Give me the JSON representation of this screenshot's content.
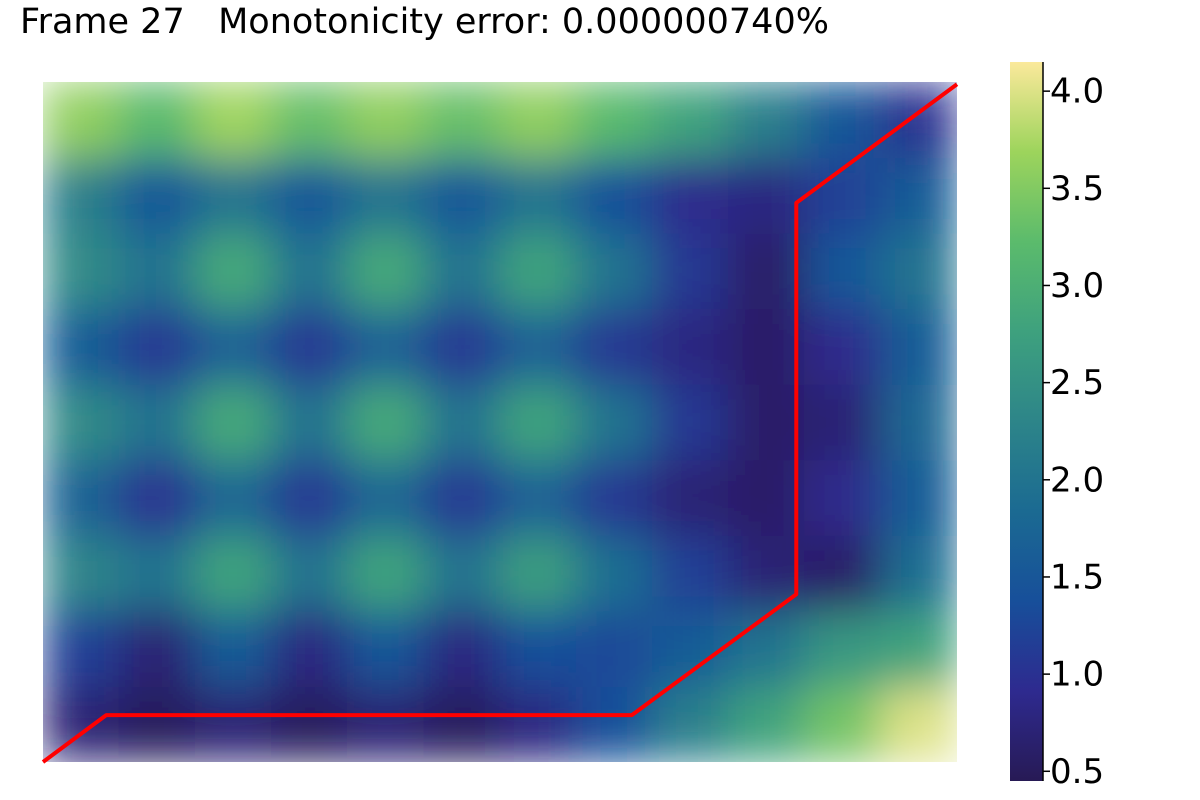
{
  "chart_data": {
    "type": "heatmap",
    "title": "Frame 27   Monotonicity error: 0.000000740%",
    "xlim": [
      0.5,
      12.5
    ],
    "ylim": [
      0.5,
      9.5
    ],
    "z": [
      [
        0.7,
        0.5,
        0.7,
        0.5,
        0.7,
        0.5,
        0.8,
        1.4,
        2.2,
        2.8,
        3.4,
        4.0
      ],
      [
        1.2,
        0.7,
        1.6,
        0.8,
        1.5,
        0.8,
        1.4,
        1.3,
        1.6,
        2.0,
        2.6,
        2.8
      ],
      [
        2.3,
        2.0,
        2.8,
        2.0,
        2.8,
        2.0,
        2.7,
        1.9,
        1.2,
        0.7,
        0.6,
        1.9
      ],
      [
        1.7,
        1.0,
        1.8,
        1.1,
        1.8,
        1.1,
        1.7,
        1.1,
        0.7,
        0.6,
        0.9,
        1.6
      ],
      [
        2.4,
        2.0,
        2.9,
        2.0,
        2.9,
        2.0,
        2.8,
        2.0,
        1.1,
        0.6,
        0.7,
        1.8
      ],
      [
        1.6,
        1.1,
        1.7,
        1.1,
        1.7,
        1.1,
        1.7,
        1.1,
        0.8,
        0.6,
        0.9,
        1.6
      ],
      [
        2.4,
        2.0,
        2.9,
        2.0,
        2.9,
        2.0,
        2.8,
        2.0,
        1.1,
        0.6,
        1.5,
        2.0
      ],
      [
        2.2,
        1.5,
        2.0,
        1.5,
        2.0,
        1.5,
        2.0,
        1.4,
        0.9,
        0.8,
        1.2,
        1.6
      ],
      [
        3.6,
        3.2,
        3.7,
        3.3,
        3.6,
        3.3,
        3.6,
        3.2,
        2.8,
        2.2,
        1.5,
        1.0
      ]
    ],
    "colormap": [
      "#271a55",
      "#2e2a8f",
      "#174f9a",
      "#1b6a92",
      "#2d8589",
      "#3ea17e",
      "#5bbb6c",
      "#9dd45c",
      "#fbe99b"
    ],
    "clim": [
      0.45,
      4.15
    ],
    "cticks": [
      0.5,
      {
        "value": 1.0,
        "label": "1.0"
      },
      1.5,
      {
        "value": 2.0,
        "label": "2.0"
      },
      2.5,
      {
        "value": 3.0,
        "label": "3.0"
      },
      3.5,
      {
        "value": 4.0,
        "label": "4.0"
      }
    ],
    "path": {
      "color": "#ff0000",
      "x": [
        0.5,
        1.33,
        8.23,
        10.39,
        10.39,
        12.5
      ],
      "y": [
        0.5,
        1.12,
        1.12,
        2.72,
        7.9,
        9.47
      ]
    }
  }
}
